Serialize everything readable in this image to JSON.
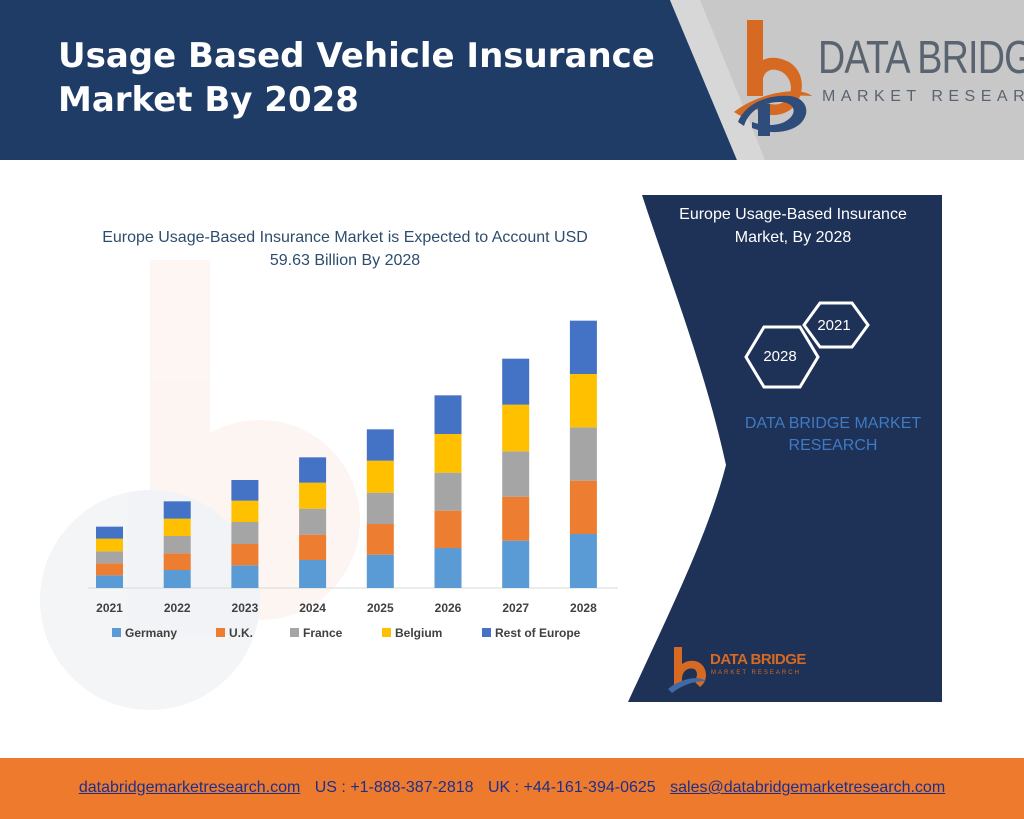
{
  "header": {
    "title_line1": "Usage Based Vehicle Insurance",
    "title_line2": "Market By 2028",
    "logo_main": "DATA BRIDGE",
    "logo_sub": "MARKET RESEARCH"
  },
  "colors": {
    "header_navy": "#1f3c66",
    "panel_navy": "#1e3157",
    "footer_orange": "#ee7b2d",
    "germany": "#5b9bd5",
    "uk": "#ed7d31",
    "france": "#a5a5a5",
    "belgium": "#ffc000",
    "rest_of_europe": "#4472c4"
  },
  "chart_data": {
    "type": "bar",
    "stacked": true,
    "title": "Europe Usage-Based Insurance Market is Expected to Account USD 59.63 Billion By 2028",
    "categories": [
      "2021",
      "2022",
      "2023",
      "2024",
      "2025",
      "2026",
      "2027",
      "2028"
    ],
    "series": [
      {
        "name": "Germany",
        "color": "#5b9bd5",
        "values": [
          1.9,
          2.7,
          3.4,
          4.2,
          5.0,
          6.0,
          7.1,
          8.1
        ]
      },
      {
        "name": "U.K.",
        "color": "#ed7d31",
        "values": [
          1.8,
          2.5,
          3.2,
          3.8,
          4.6,
          5.6,
          6.6,
          8.0
        ]
      },
      {
        "name": "France",
        "color": "#a5a5a5",
        "values": [
          1.8,
          2.6,
          3.3,
          3.9,
          4.7,
          5.7,
          6.8,
          8.0
        ]
      },
      {
        "name": "Belgium",
        "color": "#ffc000",
        "values": [
          1.9,
          2.6,
          3.2,
          3.9,
          4.8,
          5.8,
          7.0,
          8.0
        ]
      },
      {
        "name": "Rest of Europe",
        "color": "#4472c4",
        "values": [
          1.8,
          2.6,
          3.1,
          3.8,
          4.7,
          5.8,
          6.9,
          8.0
        ]
      }
    ],
    "legend_position": "bottom",
    "ylim": [
      0,
      42
    ],
    "grid": false
  },
  "side_panel": {
    "title_line1": "Europe Usage-Based Insurance",
    "title_line2": "Market, By 2028",
    "hex_labels": [
      "2021",
      "2028"
    ],
    "watermark_line1": "DATA BRIDGE MARKET",
    "watermark_line2": "RESEARCH",
    "logo_main": "DATA BRIDGE",
    "logo_sub": "MARKET RESEARCH"
  },
  "footer": {
    "website": "databridgemarketresearch.com",
    "us_phone": "US : +1-888-387-2818",
    "uk_phone": "UK : +44-161-394-0625",
    "email": "sales@databridgemarketresearch.com"
  }
}
